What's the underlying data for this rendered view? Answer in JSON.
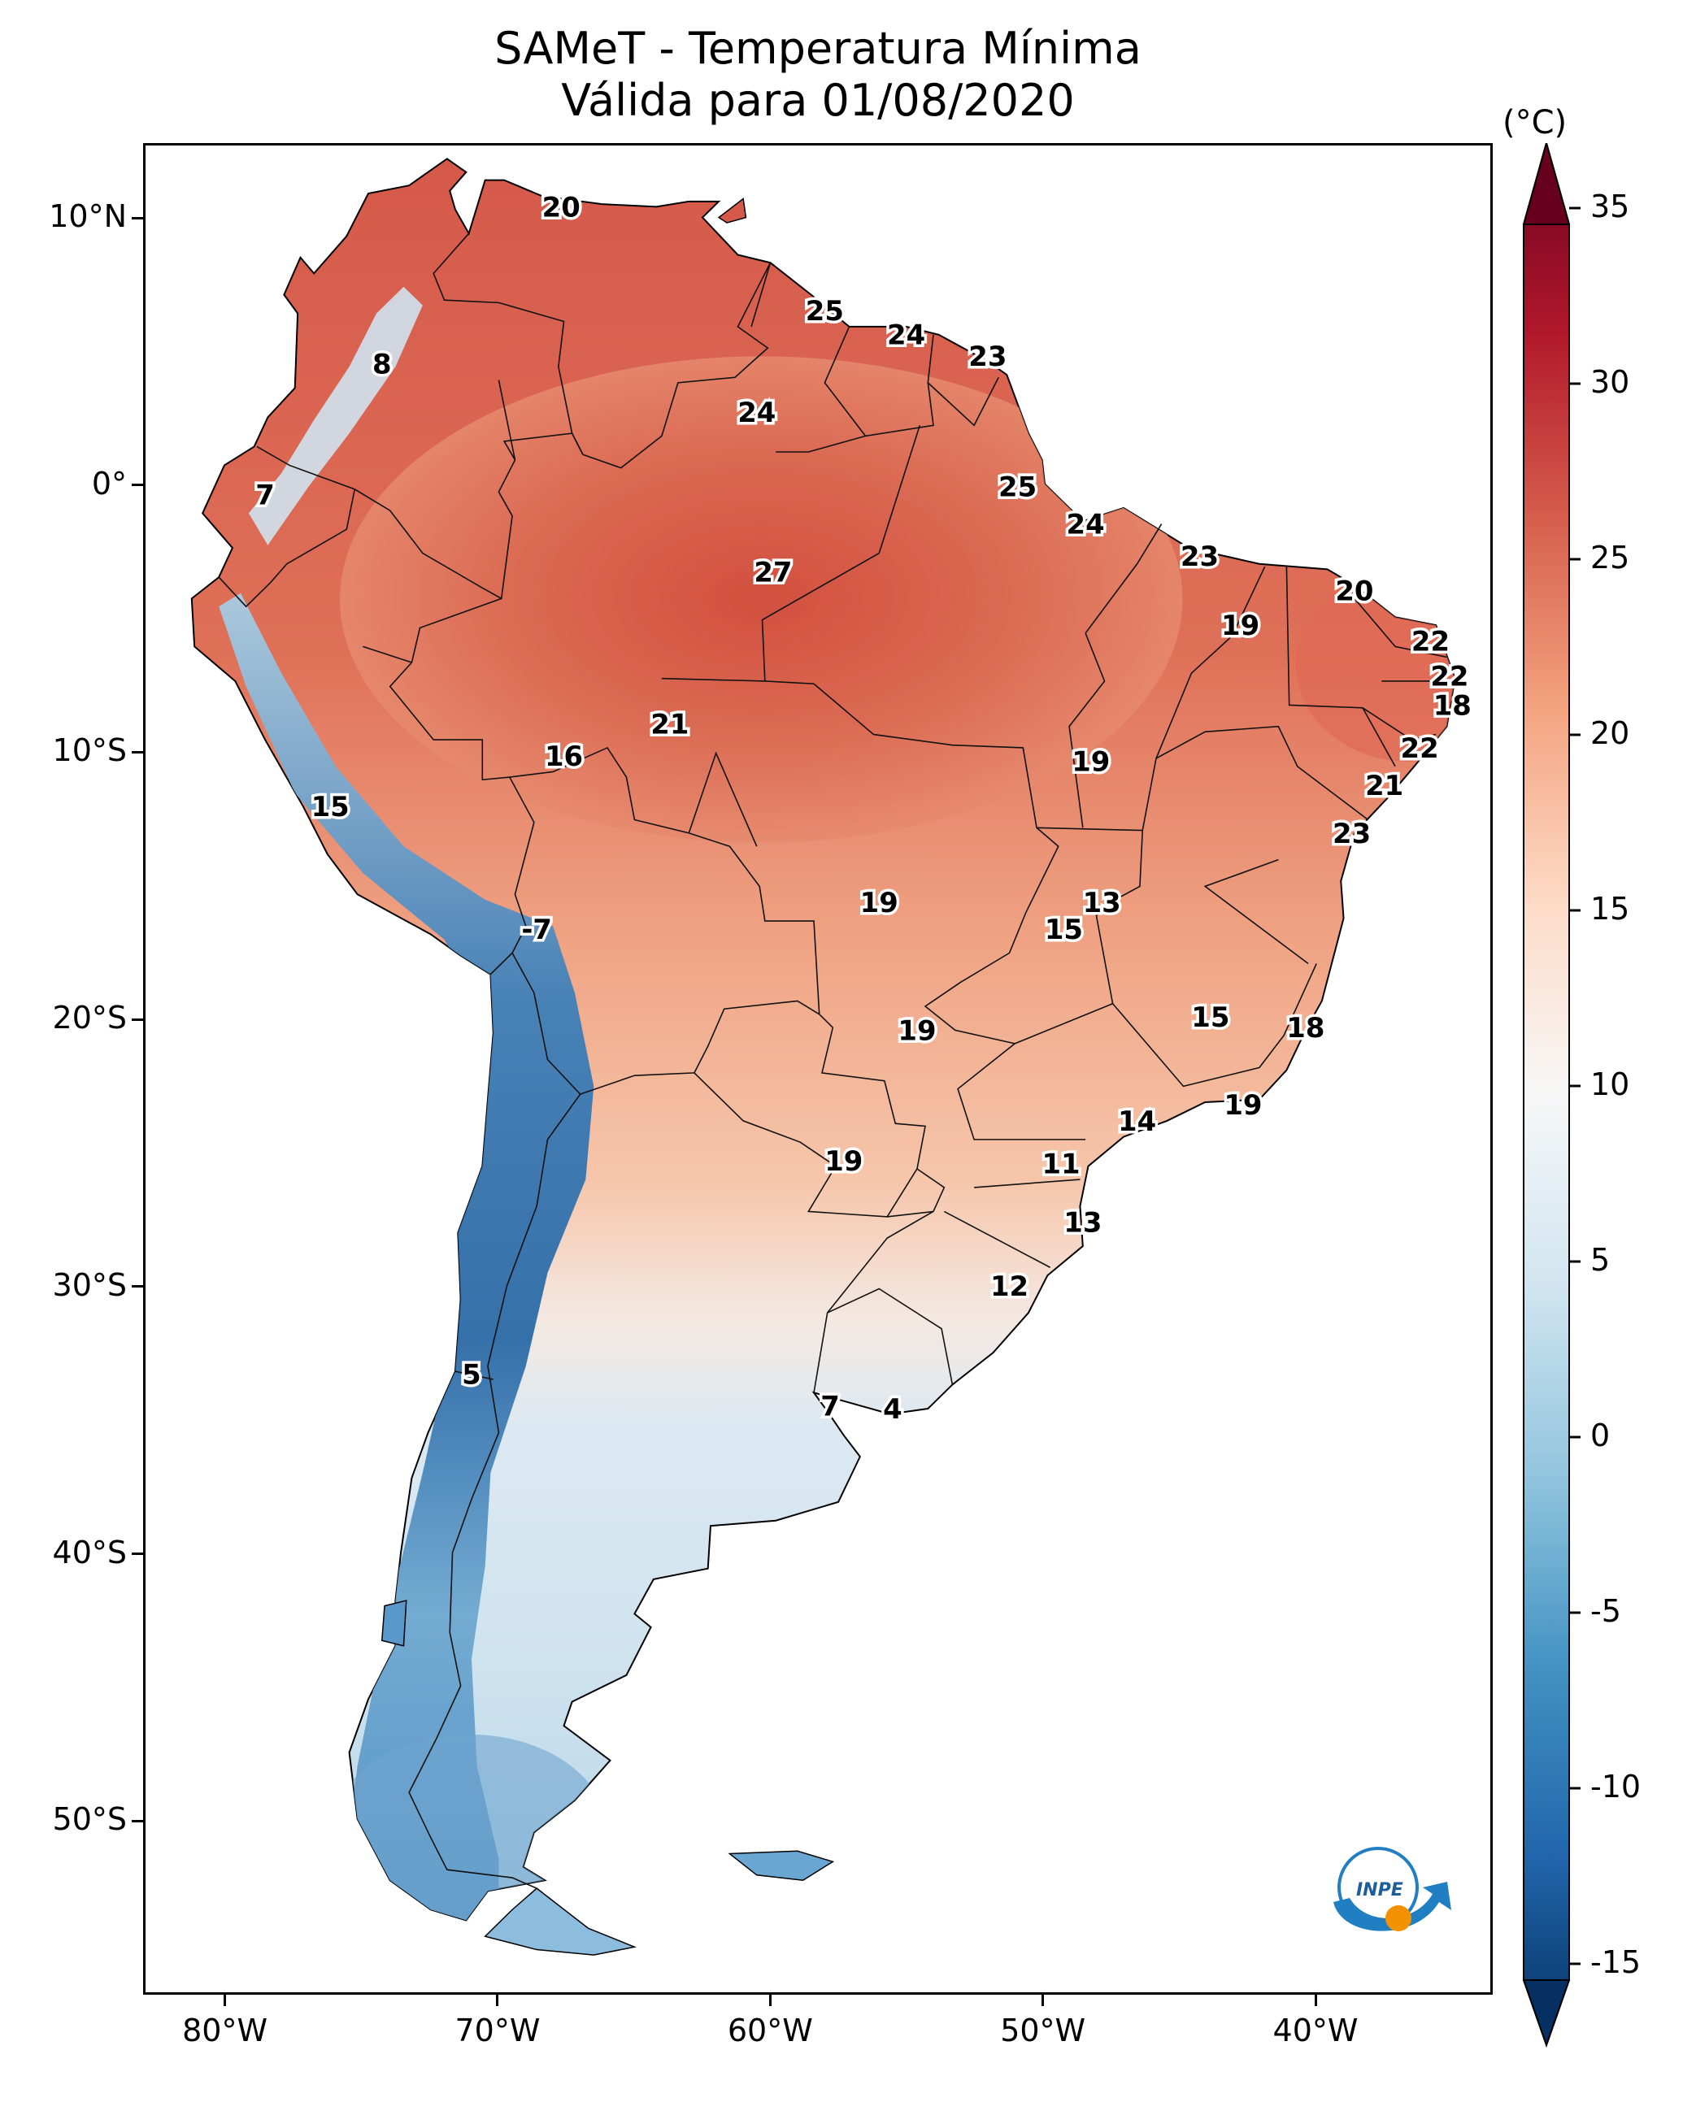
{
  "title": {
    "line1": "SAMeT - Temperatura Mínima",
    "line2": "Válida para 01/08/2020"
  },
  "map": {
    "lon_range": [
      -83,
      -33.5
    ],
    "lat_range": [
      -56.5,
      12.8
    ],
    "lon_ticks": [
      {
        "value": -80,
        "label": "80°W"
      },
      {
        "value": -70,
        "label": "70°W"
      },
      {
        "value": -60,
        "label": "60°W"
      },
      {
        "value": -50,
        "label": "50°W"
      },
      {
        "value": -40,
        "label": "40°W"
      }
    ],
    "lat_ticks": [
      {
        "value": 10,
        "label": "10°N"
      },
      {
        "value": 0,
        "label": "0°"
      },
      {
        "value": -10,
        "label": "10°S"
      },
      {
        "value": -20,
        "label": "20°S"
      },
      {
        "value": -30,
        "label": "30°S"
      },
      {
        "value": -40,
        "label": "40°S"
      },
      {
        "value": -50,
        "label": "50°S"
      }
    ],
    "contour_labels": [
      {
        "text": "20",
        "lon": -67.7,
        "lat": 10.5
      },
      {
        "text": "8",
        "lon": -74.3,
        "lat": 4.6
      },
      {
        "text": "25",
        "lon": -58.0,
        "lat": 6.6
      },
      {
        "text": "24",
        "lon": -55.0,
        "lat": 5.7
      },
      {
        "text": "23",
        "lon": -52.0,
        "lat": 4.9
      },
      {
        "text": "24",
        "lon": -60.5,
        "lat": 2.8
      },
      {
        "text": "7",
        "lon": -78.6,
        "lat": -0.3
      },
      {
        "text": "25",
        "lon": -50.9,
        "lat": 0.0
      },
      {
        "text": "24",
        "lon": -48.4,
        "lat": -1.4
      },
      {
        "text": "27",
        "lon": -59.9,
        "lat": -3.2
      },
      {
        "text": "23",
        "lon": -44.2,
        "lat": -2.6
      },
      {
        "text": "20",
        "lon": -38.5,
        "lat": -3.9
      },
      {
        "text": "19",
        "lon": -42.7,
        "lat": -5.2
      },
      {
        "text": "22",
        "lon": -35.7,
        "lat": -5.8
      },
      {
        "text": "22",
        "lon": -35.0,
        "lat": -7.1
      },
      {
        "text": "18",
        "lon": -34.9,
        "lat": -8.2
      },
      {
        "text": "21",
        "lon": -63.7,
        "lat": -8.9
      },
      {
        "text": "16",
        "lon": -67.6,
        "lat": -10.1
      },
      {
        "text": "19",
        "lon": -48.2,
        "lat": -10.3
      },
      {
        "text": "22",
        "lon": -36.1,
        "lat": -9.8
      },
      {
        "text": "21",
        "lon": -37.4,
        "lat": -11.2
      },
      {
        "text": "15",
        "lon": -76.2,
        "lat": -12.0
      },
      {
        "text": "23",
        "lon": -38.6,
        "lat": -13.0
      },
      {
        "text": "13",
        "lon": -47.8,
        "lat": -15.6
      },
      {
        "text": "19",
        "lon": -56.0,
        "lat": -15.6
      },
      {
        "text": "15",
        "lon": -49.2,
        "lat": -16.6
      },
      {
        "text": "-7",
        "lon": -68.6,
        "lat": -16.6
      },
      {
        "text": "15",
        "lon": -43.8,
        "lat": -19.9
      },
      {
        "text": "19",
        "lon": -54.6,
        "lat": -20.4
      },
      {
        "text": "18",
        "lon": -40.3,
        "lat": -20.3
      },
      {
        "text": "19",
        "lon": -42.6,
        "lat": -23.2
      },
      {
        "text": "14",
        "lon": -46.5,
        "lat": -23.8
      },
      {
        "text": "11",
        "lon": -49.3,
        "lat": -25.4
      },
      {
        "text": "19",
        "lon": -57.3,
        "lat": -25.3
      },
      {
        "text": "13",
        "lon": -48.5,
        "lat": -27.6
      },
      {
        "text": "12",
        "lon": -51.2,
        "lat": -30.0
      },
      {
        "text": "5",
        "lon": -71.0,
        "lat": -33.3
      },
      {
        "text": "7",
        "lon": -57.8,
        "lat": -34.5
      },
      {
        "text": "4",
        "lon": -55.5,
        "lat": -34.6
      }
    ]
  },
  "colorbar": {
    "unit": "(°C)",
    "min": -15,
    "max": 35,
    "ticks": [
      "35",
      "30",
      "25",
      "20",
      "15",
      "10",
      "5",
      "0",
      "-5",
      "-10",
      "-15"
    ],
    "colormap": "RdBu_r",
    "colors": [
      "#053061",
      "#2166ac",
      "#4393c3",
      "#92c5de",
      "#d1e5f0",
      "#f7f7f7",
      "#fddbc7",
      "#f4a582",
      "#d6604d",
      "#b2182b",
      "#67001f"
    ]
  },
  "logo": {
    "text": "INPE"
  }
}
